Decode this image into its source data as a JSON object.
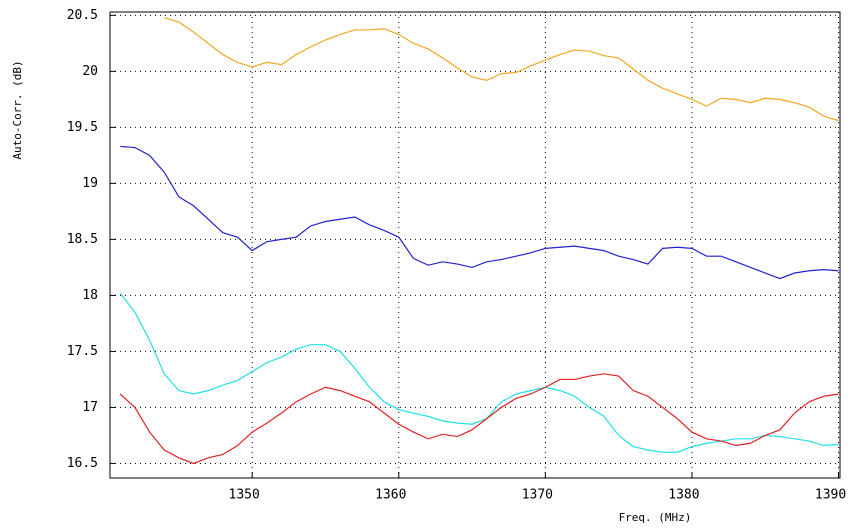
{
  "chart_data": {
    "type": "line",
    "x_label": "Freq. (MHz)",
    "y_label": "Auto-Corr. (dB)",
    "x": [
      1341,
      1342,
      1343,
      1344,
      1345,
      1346,
      1347,
      1348,
      1349,
      1350,
      1351,
      1352,
      1353,
      1354,
      1355,
      1356,
      1357,
      1358,
      1359,
      1360,
      1361,
      1362,
      1363,
      1364,
      1365,
      1366,
      1367,
      1368,
      1369,
      1370,
      1371,
      1372,
      1373,
      1374,
      1375,
      1376,
      1377,
      1378,
      1379,
      1380,
      1381,
      1382,
      1383,
      1384,
      1385,
      1386,
      1387,
      1388,
      1389,
      1390
    ],
    "series": [
      {
        "color": "#f5a623",
        "values": [
          null,
          null,
          null,
          20.48,
          20.44,
          20.35,
          20.25,
          20.15,
          20.08,
          20.04,
          20.08,
          20.06,
          20.15,
          20.22,
          20.28,
          20.33,
          20.37,
          20.37,
          20.38,
          20.33,
          20.25,
          20.2,
          20.12,
          20.03,
          19.95,
          19.92,
          19.98,
          19.99,
          20.05,
          20.1,
          20.15,
          20.19,
          20.18,
          20.14,
          20.12,
          20.02,
          19.92,
          19.85,
          19.8,
          19.75,
          19.69,
          19.76,
          19.75,
          19.72,
          19.76,
          19.75,
          19.72,
          19.68,
          19.6,
          19.56
        ]
      },
      {
        "color": "#2222cc",
        "values": [
          19.33,
          19.32,
          19.25,
          19.1,
          18.88,
          18.8,
          18.68,
          18.56,
          18.52,
          18.4,
          18.48,
          18.5,
          18.52,
          18.62,
          18.66,
          18.68,
          18.7,
          18.63,
          18.58,
          18.52,
          18.33,
          18.27,
          18.3,
          18.28,
          18.25,
          18.3,
          18.32,
          18.35,
          18.38,
          18.42,
          18.43,
          18.44,
          18.42,
          18.4,
          18.35,
          18.32,
          18.28,
          18.42,
          18.43,
          18.42,
          18.35,
          18.35,
          18.3,
          18.25,
          18.2,
          18.15,
          18.2,
          18.22,
          18.23,
          18.22
        ]
      },
      {
        "color": "#22e0e8",
        "values": [
          18.02,
          17.85,
          17.6,
          17.3,
          17.15,
          17.12,
          17.15,
          17.2,
          17.24,
          17.32,
          17.4,
          17.45,
          17.52,
          17.56,
          17.56,
          17.5,
          17.35,
          17.18,
          17.05,
          16.98,
          16.95,
          16.92,
          16.88,
          16.86,
          16.85,
          16.9,
          17.05,
          17.12,
          17.15,
          17.18,
          17.15,
          17.1,
          17.0,
          16.92,
          16.75,
          16.65,
          16.62,
          16.6,
          16.6,
          16.65,
          16.68,
          16.7,
          16.72,
          16.72,
          16.75,
          16.74,
          16.72,
          16.7,
          16.66,
          16.67
        ]
      },
      {
        "color": "#e02222",
        "values": [
          17.12,
          17.0,
          16.78,
          16.62,
          16.55,
          16.5,
          16.55,
          16.58,
          16.66,
          16.78,
          16.86,
          16.95,
          17.05,
          17.12,
          17.18,
          17.15,
          17.1,
          17.05,
          16.95,
          16.85,
          16.78,
          16.72,
          16.76,
          16.74,
          16.8,
          16.9,
          17.0,
          17.08,
          17.12,
          17.18,
          17.25,
          17.25,
          17.28,
          17.3,
          17.28,
          17.15,
          17.1,
          17.0,
          16.9,
          16.78,
          16.72,
          16.7,
          16.66,
          16.68,
          16.75,
          16.8,
          16.95,
          17.05,
          17.1,
          17.12
        ]
      }
    ],
    "xlim": [
      1340.3,
      1390.1
    ],
    "xticks": [
      1350,
      1360,
      1370,
      1380,
      1390
    ],
    "ylim": [
      16.37,
      20.53
    ],
    "yticks": [
      16.5,
      17,
      17.5,
      18,
      18.5,
      19,
      19.5,
      20,
      20.5
    ],
    "grid": true
  }
}
